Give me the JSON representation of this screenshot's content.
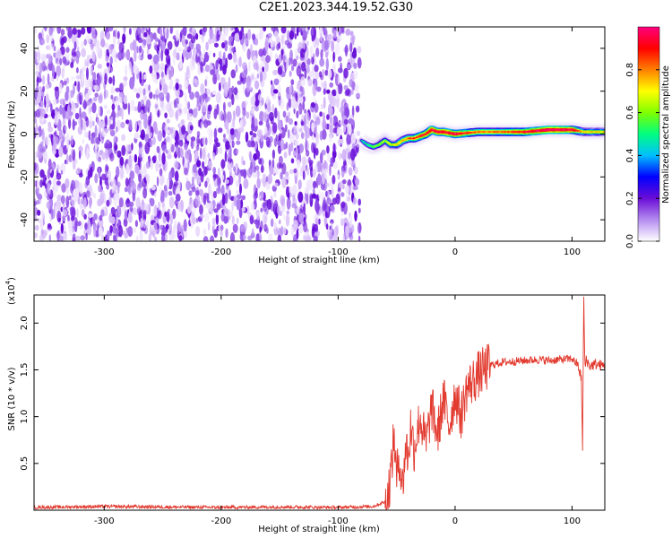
{
  "title": "C2E1.2023.344.19.52.G30",
  "chart_data": [
    {
      "type": "heatmap",
      "xlabel": "Height of straight line (km)",
      "ylabel": "Frequency (Hz)",
      "xlim": [
        -360,
        128
      ],
      "ylim": [
        -50,
        50
      ],
      "xticks": [
        -300,
        -200,
        -100,
        0,
        100
      ],
      "yticks": [
        -40,
        -20,
        0,
        20,
        40
      ],
      "noise_region_x": [
        -360,
        -80
      ],
      "colorbar": {
        "label": "Normalized spectral amplitude",
        "range": [
          0,
          1
        ],
        "ticks": [
          "0.0",
          "0.2",
          "0.4",
          "0.6",
          "0.8"
        ],
        "colors": [
          "#ffffff",
          "#b48cf0",
          "#6a0dd6",
          "#0000ff",
          "#00bfff",
          "#00ff80",
          "#7fff00",
          "#ffff00",
          "#ff8000",
          "#ff0000",
          "#ff0080"
        ]
      },
      "signal_ridge": {
        "x": [
          -80,
          -75,
          -70,
          -65,
          -60,
          -55,
          -50,
          -45,
          -40,
          -35,
          -30,
          -25,
          -20,
          -15,
          -10,
          0,
          20,
          40,
          60,
          80,
          100,
          110,
          128
        ],
        "y": [
          -3,
          -5,
          -6,
          -5,
          -3,
          -5,
          -5,
          -3,
          -2,
          -2,
          -1,
          0,
          2,
          1,
          1,
          0,
          1,
          1,
          1,
          2,
          2,
          1,
          1
        ],
        "amplitude": [
          0.3,
          0.4,
          0.45,
          0.5,
          0.5,
          0.55,
          0.6,
          0.65,
          0.7,
          0.75,
          0.8,
          0.8,
          0.85,
          0.85,
          0.85,
          0.85,
          0.7,
          0.7,
          0.8,
          0.9,
          0.85,
          0.6,
          0.6
        ]
      }
    },
    {
      "type": "line",
      "xlabel": "Height of straight line (km)",
      "ylabel": "SNR (10 * v/v)",
      "scale_label": "(x10",
      "scale_exp": "4",
      "scale_close": ")",
      "xlim": [
        -360,
        128
      ],
      "ylim": [
        0,
        23000
      ],
      "xticks": [
        -300,
        -200,
        -100,
        0,
        100
      ],
      "yticks": [
        "0.5",
        "1.0",
        "1.5",
        "2.0"
      ],
      "ytick_values": [
        5000,
        10000,
        15000,
        20000
      ],
      "color": "#e23a2f",
      "series": [
        {
          "x": [
            -360,
            -300,
            -250,
            -200,
            -150,
            -100,
            -70,
            -58,
            -55,
            -52,
            -50,
            -48,
            -45,
            -42,
            -40,
            -38,
            -35,
            -30,
            -25,
            -20,
            -15,
            -10,
            -5,
            0,
            5,
            10,
            20,
            30,
            40,
            50,
            60,
            70,
            80,
            90,
            100,
            105,
            108,
            109,
            110,
            111,
            112,
            115,
            120,
            128
          ],
          "y": [
            300,
            400,
            350,
            300,
            350,
            300,
            400,
            1000,
            4000,
            8000,
            3000,
            6000,
            2500,
            7000,
            5500,
            9000,
            6500,
            10000,
            7000,
            11000,
            8000,
            12000,
            9000,
            12500,
            10000,
            13000,
            14500,
            15500,
            15800,
            15900,
            16000,
            16100,
            16000,
            16100,
            16200,
            15500,
            14000,
            6200,
            23000,
            15000,
            16200,
            15400,
            15600,
            15400
          ]
        }
      ]
    }
  ]
}
